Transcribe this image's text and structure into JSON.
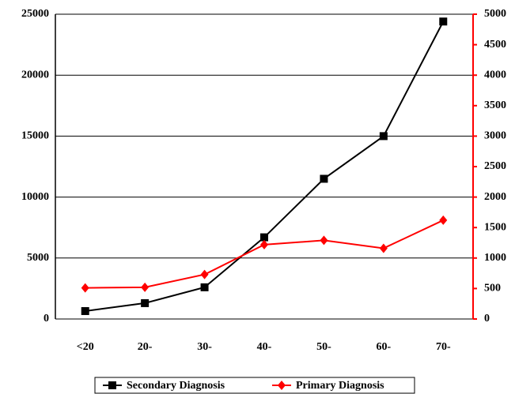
{
  "chart_data": {
    "type": "line",
    "categories": [
      "<20",
      "20-",
      "30-",
      "40-",
      "50-",
      "60-",
      "70-"
    ],
    "series": [
      {
        "name": "Secondary Diagnosis",
        "color": "#000000",
        "marker": "square",
        "values": [
          650,
          1300,
          2600,
          6700,
          11500,
          15000,
          24400
        ]
      },
      {
        "name": "Primary Diagnosis",
        "color": "#ff0000",
        "marker": "diamond",
        "axis": "y2",
        "values": [
          510,
          520,
          730,
          1220,
          1290,
          1160,
          1620
        ]
      }
    ],
    "ylim": [
      0,
      25000
    ],
    "yticks": [
      0,
      5000,
      10000,
      15000,
      20000,
      25000
    ],
    "y2lim": [
      0,
      5000
    ],
    "y2ticks": [
      0,
      500,
      1000,
      1500,
      2000,
      2500,
      3000,
      3500,
      4000,
      4500,
      5000
    ],
    "y2color": "#ff0000",
    "grid": true,
    "legend": "bottom"
  }
}
